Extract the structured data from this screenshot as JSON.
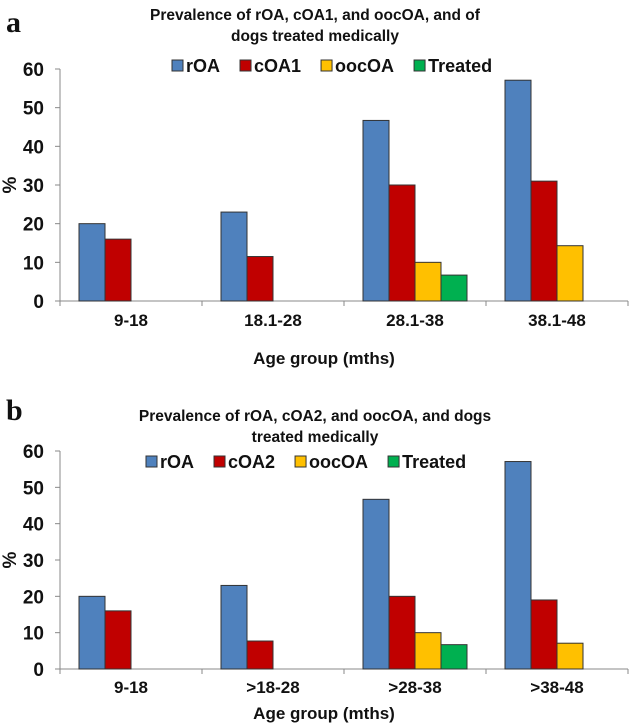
{
  "chart_data": [
    {
      "panel_label": "a",
      "type": "bar",
      "title": [
        "Prevalence of rOA, cOA1, and oocOA, and of",
        "dogs treated medically"
      ],
      "xlabel": "Age group (mths)",
      "ylabel": "%",
      "ylim": [
        0,
        60
      ],
      "yticks": [
        0,
        10,
        20,
        30,
        40,
        50,
        60
      ],
      "grid": false,
      "legend_position": "top",
      "categories": [
        "9-18",
        "18.1-28",
        "28.1-38",
        "38.1-48"
      ],
      "series": [
        {
          "name": "rOA",
          "color": "#4f81bd",
          "values": [
            20,
            23,
            46.7,
            57.1
          ]
        },
        {
          "name": "cOA1",
          "color": "#c00000",
          "values": [
            16,
            11.5,
            30,
            31
          ]
        },
        {
          "name": "oocOA",
          "color": "#ffc000",
          "values": [
            0,
            0,
            10,
            14.3
          ]
        },
        {
          "name": "Treated",
          "color": "#00b050",
          "values": [
            0,
            0,
            6.7,
            0
          ]
        }
      ]
    },
    {
      "panel_label": "b",
      "type": "bar",
      "title": [
        "Prevalence of rOA, cOA2, and oocOA, and dogs",
        "treated medically"
      ],
      "xlabel": "Age group (mths)",
      "ylabel": "%",
      "ylim": [
        0,
        60
      ],
      "yticks": [
        0,
        10,
        20,
        30,
        40,
        50,
        60
      ],
      "grid": false,
      "legend_position": "top",
      "categories": [
        "9-18",
        ">18-28",
        ">28-38",
        ">38-48"
      ],
      "series": [
        {
          "name": "rOA",
          "color": "#4f81bd",
          "values": [
            20,
            23,
            46.7,
            57.1
          ]
        },
        {
          "name": "cOA2",
          "color": "#c00000",
          "values": [
            16,
            7.7,
            20,
            19
          ]
        },
        {
          "name": "oocOA",
          "color": "#ffc000",
          "values": [
            0,
            0,
            10,
            7.1
          ]
        },
        {
          "name": "Treated",
          "color": "#00b050",
          "values": [
            0,
            0,
            6.7,
            0
          ]
        }
      ]
    }
  ]
}
